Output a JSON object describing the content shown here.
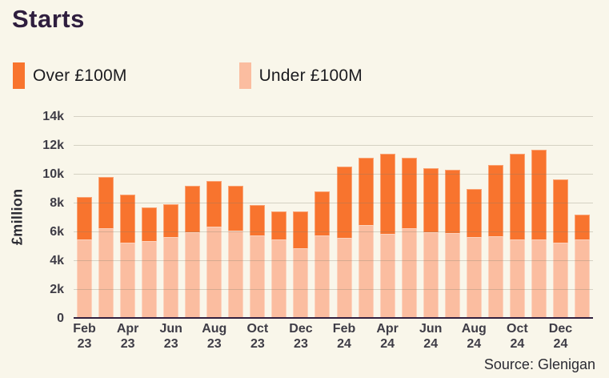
{
  "page": {
    "title": "Starts",
    "source": "Source: Glenigan"
  },
  "legend": [
    {
      "label": "Over £100M",
      "color": "#f8742e"
    },
    {
      "label": "Under £100M",
      "color": "#fbbda0"
    }
  ],
  "chart_data": {
    "type": "bar",
    "stacked": true,
    "title": "Starts",
    "xlabel": "",
    "ylabel": "£million",
    "ylim": [
      0,
      14000
    ],
    "grid": "horizontal",
    "legend_position": "top-left",
    "y_ticks": [
      {
        "value": 0,
        "label": "0"
      },
      {
        "value": 2000,
        "label": "2k"
      },
      {
        "value": 4000,
        "label": "4k"
      },
      {
        "value": 6000,
        "label": "6k"
      },
      {
        "value": 8000,
        "label": "8k"
      },
      {
        "value": 10000,
        "label": "10k"
      },
      {
        "value": 12000,
        "label": "12k"
      },
      {
        "value": 14000,
        "label": "14k"
      }
    ],
    "categories": [
      "Feb 23",
      "Mar 23",
      "Apr 23",
      "May 23",
      "Jun 23",
      "Jul 23",
      "Aug 23",
      "Sep 23",
      "Oct 23",
      "Nov 23",
      "Dec 23",
      "Jan 24",
      "Feb 24",
      "Mar 24",
      "Apr 24",
      "May 24",
      "Jun 24",
      "Jul 24",
      "Aug 24",
      "Sep 24",
      "Oct 24",
      "Nov 24",
      "Dec 24",
      "Jan 25"
    ],
    "x_tick_every": 2,
    "series": [
      {
        "name": "Under £100M",
        "color": "#fbbda0",
        "values": [
          5450,
          6200,
          5250,
          5350,
          5600,
          5950,
          6350,
          6050,
          5750,
          5450,
          4850,
          5700,
          5550,
          6450,
          5850,
          6200,
          5950,
          5900,
          5600,
          5650,
          5450,
          5450,
          5200,
          5450
        ]
      },
      {
        "name": "Over £100M",
        "color": "#f8742e",
        "values": [
          2950,
          3600,
          3300,
          2300,
          2300,
          3200,
          3150,
          3100,
          2100,
          1950,
          2550,
          3100,
          4950,
          4650,
          5550,
          4900,
          4450,
          4400,
          3350,
          4950,
          5950,
          6200,
          4400,
          1700
        ]
      }
    ]
  }
}
